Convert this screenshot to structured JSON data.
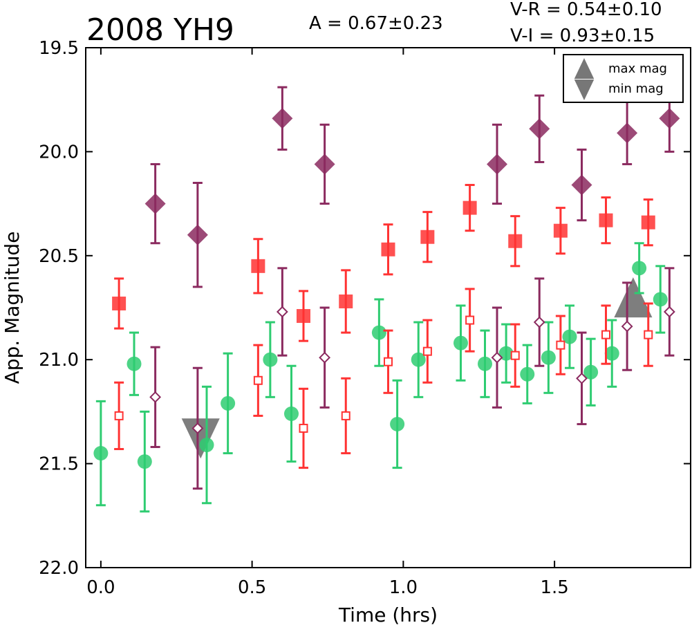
{
  "chart_data": {
    "type": "scatter",
    "title": "2008 YH9",
    "annotations": {
      "amplitude": "A  = 0.67±0.23",
      "v_r": "V-R = 0.54±0.10",
      "v_i": "V-I  = 0.93±0.15"
    },
    "xlabel": "Time (hrs)",
    "ylabel": "App. Magnitude",
    "xlim": [
      -0.05,
      1.95
    ],
    "ylim": [
      22.0,
      19.5
    ],
    "y_inverted": true,
    "x_ticks": [
      "0.0",
      "0.5",
      "1.0",
      "1.5"
    ],
    "y_ticks": [
      "19.5",
      "20.0",
      "20.5",
      "21.0",
      "21.5",
      "22.0"
    ],
    "grid": false,
    "legend": {
      "placement": "top-right",
      "entries": [
        {
          "label": "max mag",
          "marker": "triangle-up",
          "color": "#777777"
        },
        {
          "label": "min mag",
          "marker": "triangle-down",
          "color": "#777777"
        }
      ]
    },
    "series": [
      {
        "marker": "circle",
        "filled": true,
        "color": "#2ecc71",
        "points": [
          {
            "x": 0.0,
            "y": 21.45,
            "err": 0.25
          },
          {
            "x": 0.11,
            "y": 21.02,
            "err": 0.15
          },
          {
            "x": 0.145,
            "y": 21.49,
            "err": 0.24
          },
          {
            "x": 0.35,
            "y": 21.41,
            "err": 0.28
          },
          {
            "x": 0.42,
            "y": 21.21,
            "err": 0.24
          },
          {
            "x": 0.56,
            "y": 21.0,
            "err": 0.18
          },
          {
            "x": 0.63,
            "y": 21.26,
            "err": 0.23
          },
          {
            "x": 0.92,
            "y": 20.87,
            "err": 0.16
          },
          {
            "x": 0.98,
            "y": 21.31,
            "err": 0.21
          },
          {
            "x": 1.05,
            "y": 21.0,
            "err": 0.18
          },
          {
            "x": 1.19,
            "y": 20.92,
            "err": 0.18
          },
          {
            "x": 1.27,
            "y": 21.02,
            "err": 0.16
          },
          {
            "x": 1.34,
            "y": 20.97,
            "err": 0.14
          },
          {
            "x": 1.41,
            "y": 21.07,
            "err": 0.14
          },
          {
            "x": 1.48,
            "y": 20.99,
            "err": 0.17
          },
          {
            "x": 1.55,
            "y": 20.89,
            "err": 0.15
          },
          {
            "x": 1.62,
            "y": 21.06,
            "err": 0.16
          },
          {
            "x": 1.69,
            "y": 20.97,
            "err": 0.16
          },
          {
            "x": 1.78,
            "y": 20.56,
            "err": 0.12
          },
          {
            "x": 1.85,
            "y": 20.71,
            "err": 0.16
          }
        ]
      },
      {
        "marker": "square",
        "filled": true,
        "color": "#ff3333",
        "points": [
          {
            "x": 0.06,
            "y": 20.73,
            "err": 0.12
          },
          {
            "x": 0.52,
            "y": 20.55,
            "err": 0.13
          },
          {
            "x": 0.67,
            "y": 20.79,
            "err": 0.12
          },
          {
            "x": 0.81,
            "y": 20.72,
            "err": 0.15
          },
          {
            "x": 0.95,
            "y": 20.47,
            "err": 0.12
          },
          {
            "x": 1.08,
            "y": 20.41,
            "err": 0.12
          },
          {
            "x": 1.22,
            "y": 20.27,
            "err": 0.11
          },
          {
            "x": 1.37,
            "y": 20.43,
            "err": 0.12
          },
          {
            "x": 1.52,
            "y": 20.38,
            "err": 0.11
          },
          {
            "x": 1.67,
            "y": 20.33,
            "err": 0.11
          },
          {
            "x": 1.81,
            "y": 20.34,
            "err": 0.11
          }
        ]
      },
      {
        "marker": "square",
        "filled": false,
        "color": "#ff3333",
        "points": [
          {
            "x": 0.06,
            "y": 21.27,
            "err": 0.16
          },
          {
            "x": 0.52,
            "y": 21.1,
            "err": 0.17
          },
          {
            "x": 0.67,
            "y": 21.33,
            "err": 0.19
          },
          {
            "x": 0.81,
            "y": 21.27,
            "err": 0.18
          },
          {
            "x": 0.95,
            "y": 21.01,
            "err": 0.15
          },
          {
            "x": 1.08,
            "y": 20.96,
            "err": 0.15
          },
          {
            "x": 1.22,
            "y": 20.81,
            "err": 0.15
          },
          {
            "x": 1.37,
            "y": 20.98,
            "err": 0.15
          },
          {
            "x": 1.52,
            "y": 20.93,
            "err": 0.14
          },
          {
            "x": 1.67,
            "y": 20.88,
            "err": 0.14
          },
          {
            "x": 1.81,
            "y": 20.88,
            "err": 0.15
          }
        ]
      },
      {
        "marker": "diamond",
        "filled": true,
        "color": "#8b2a5f",
        "points": [
          {
            "x": 0.18,
            "y": 20.25,
            "err": 0.19
          },
          {
            "x": 0.32,
            "y": 20.4,
            "err": 0.25
          },
          {
            "x": 0.6,
            "y": 19.84,
            "err": 0.15
          },
          {
            "x": 0.74,
            "y": 20.06,
            "err": 0.19
          },
          {
            "x": 1.31,
            "y": 20.06,
            "err": 0.19
          },
          {
            "x": 1.45,
            "y": 19.89,
            "err": 0.16
          },
          {
            "x": 1.59,
            "y": 20.16,
            "err": 0.17
          },
          {
            "x": 1.74,
            "y": 19.91,
            "err": 0.15
          },
          {
            "x": 1.88,
            "y": 19.84,
            "err": 0.16
          }
        ]
      },
      {
        "marker": "diamond",
        "filled": false,
        "color": "#8b2a5f",
        "points": [
          {
            "x": 0.18,
            "y": 21.18,
            "err": 0.24
          },
          {
            "x": 0.32,
            "y": 21.33,
            "err": 0.29
          },
          {
            "x": 0.6,
            "y": 20.77,
            "err": 0.21
          },
          {
            "x": 0.74,
            "y": 20.99,
            "err": 0.24
          },
          {
            "x": 1.31,
            "y": 20.99,
            "err": 0.24
          },
          {
            "x": 1.45,
            "y": 20.82,
            "err": 0.21
          },
          {
            "x": 1.59,
            "y": 21.09,
            "err": 0.22
          },
          {
            "x": 1.74,
            "y": 20.84,
            "err": 0.21
          },
          {
            "x": 1.88,
            "y": 20.77,
            "err": 0.21
          }
        ]
      }
    ],
    "extrema_markers": [
      {
        "kind": "max",
        "marker": "triangle-up",
        "x": 1.76,
        "y": 20.72,
        "color": "#777777"
      },
      {
        "kind": "min",
        "marker": "triangle-down",
        "x": 0.33,
        "y": 21.36,
        "color": "#777777"
      }
    ]
  }
}
